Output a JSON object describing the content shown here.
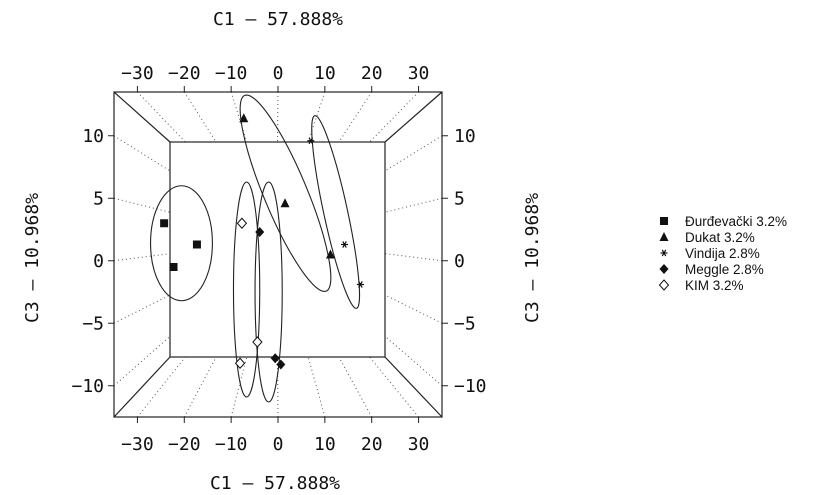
{
  "chart_data": {
    "type": "scatter",
    "axes": {
      "x": {
        "label": "C1  –  57.888%",
        "lim": [
          -35,
          35
        ],
        "ticks": [
          -30,
          -20,
          -10,
          0,
          10,
          20,
          30
        ],
        "tick_labels": [
          "−30",
          "−20",
          "−10",
          "0",
          "10",
          "20",
          "30"
        ]
      },
      "y": {
        "label": "C3  –  10.968%",
        "lim": [
          -12.5,
          13.5
        ],
        "ticks": [
          -10,
          -5,
          0,
          5,
          10
        ],
        "tick_labels": [
          "−10",
          "−5",
          "0",
          "5",
          "10"
        ]
      }
    },
    "grid": true,
    "legend_position": "right",
    "series": [
      {
        "name": "Đurđevački 3.2%",
        "marker": "square",
        "points": [
          [
            -24.3,
            3.0
          ],
          [
            -22.3,
            -0.5
          ],
          [
            -17.3,
            1.3
          ]
        ]
      },
      {
        "name": "Dukat 3.2%",
        "marker": "triangle",
        "points": [
          [
            -7.3,
            11.4
          ],
          [
            1.5,
            4.6
          ],
          [
            11.2,
            0.5
          ]
        ]
      },
      {
        "name": "Vindija 2.8%",
        "marker": "asterisk",
        "points": [
          [
            7.0,
            9.6
          ],
          [
            14.2,
            1.3
          ],
          [
            17.6,
            -1.9
          ]
        ]
      },
      {
        "name": "Meggle 2.8%",
        "marker": "diamond",
        "points": [
          [
            -3.9,
            2.3
          ],
          [
            -0.6,
            -7.8
          ],
          [
            0.6,
            -8.3
          ]
        ]
      },
      {
        "name": "KIM 3.2%",
        "marker": "open-diamond",
        "points": [
          [
            -7.7,
            3.0
          ],
          [
            -4.4,
            -6.5
          ],
          [
            -8.1,
            -8.2
          ]
        ]
      }
    ],
    "ellipses": [
      {
        "group": "Đurđevački 3.2%",
        "center": [
          -20.6,
          1.4
        ],
        "rx": 6.6,
        "ry": 4.6,
        "angle": 0
      },
      {
        "group": "KIM 3.2%",
        "center": [
          -6.7,
          -2.3
        ],
        "rx": 2.8,
        "ry": 8.6,
        "angle": 0
      },
      {
        "group": "Meggle 2.8%",
        "center": [
          -2.0,
          -2.5
        ],
        "rx": 2.9,
        "ry": 8.8,
        "angle": 0
      },
      {
        "group": "Dukat 3.2%",
        "center": [
          1.6,
          5.4
        ],
        "rx": 11.7,
        "ry": 2.2,
        "angle": -42
      },
      {
        "group": "Vindija 2.8%",
        "center": [
          12.3,
          3.9
        ],
        "rx": 8.9,
        "ry": 1.6,
        "angle": -60
      }
    ]
  }
}
